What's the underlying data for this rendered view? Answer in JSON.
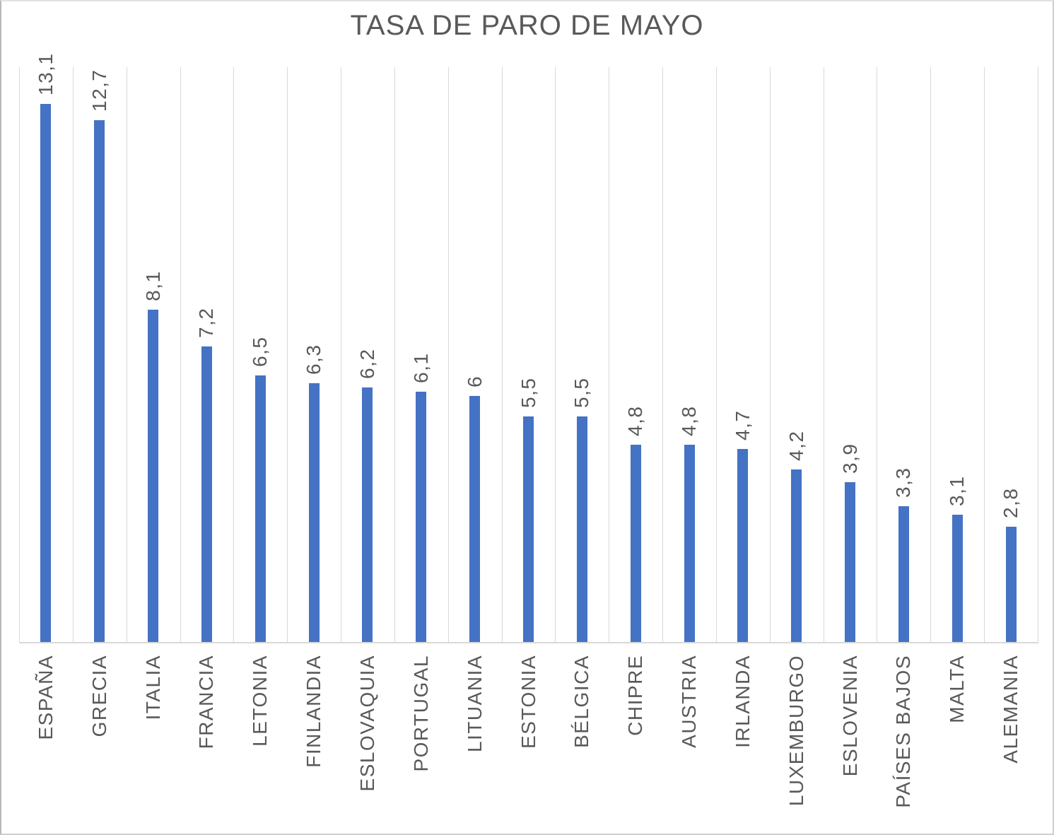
{
  "chart_data": {
    "type": "bar",
    "title": "TASA DE PARO DE MAYO",
    "categories": [
      "ESPAÑA",
      "GRECIA",
      "ITALIA",
      "FRANCIA",
      "LETONIA",
      "FINLANDIA",
      "ESLOVAQUIA",
      "PORTUGAL",
      "LITUANIA",
      "ESTONIA",
      "BÉLGICA",
      "CHIPRE",
      "AUSTRIA",
      "IRLANDA",
      "LUXEMBURGO",
      "ESLOVENIA",
      "PAÍSES BAJOS",
      "MALTA",
      "ALEMANIA"
    ],
    "values": [
      13.1,
      12.7,
      8.1,
      7.2,
      6.5,
      6.3,
      6.2,
      6.1,
      6,
      5.5,
      5.5,
      4.8,
      4.8,
      4.7,
      4.2,
      3.9,
      3.3,
      3.1,
      2.8
    ],
    "value_labels": [
      "13,1",
      "12,7",
      "8,1",
      "7,2",
      "6,5",
      "6,3",
      "6,2",
      "6,1",
      "6",
      "5,5",
      "5,5",
      "4,8",
      "4,8",
      "4,7",
      "4,2",
      "3,9",
      "3,3",
      "3,1",
      "2,8"
    ],
    "xlabel": "",
    "ylabel": "",
    "ylim": [
      0,
      14
    ],
    "grid": "vertical-category-boundaries",
    "legend": "none",
    "colors": {
      "bar": "#4472C4",
      "gridline": "#D9D9D9",
      "axis_line": "#D9D9D9",
      "label_text": "#595959",
      "title_text": "#595959"
    }
  }
}
